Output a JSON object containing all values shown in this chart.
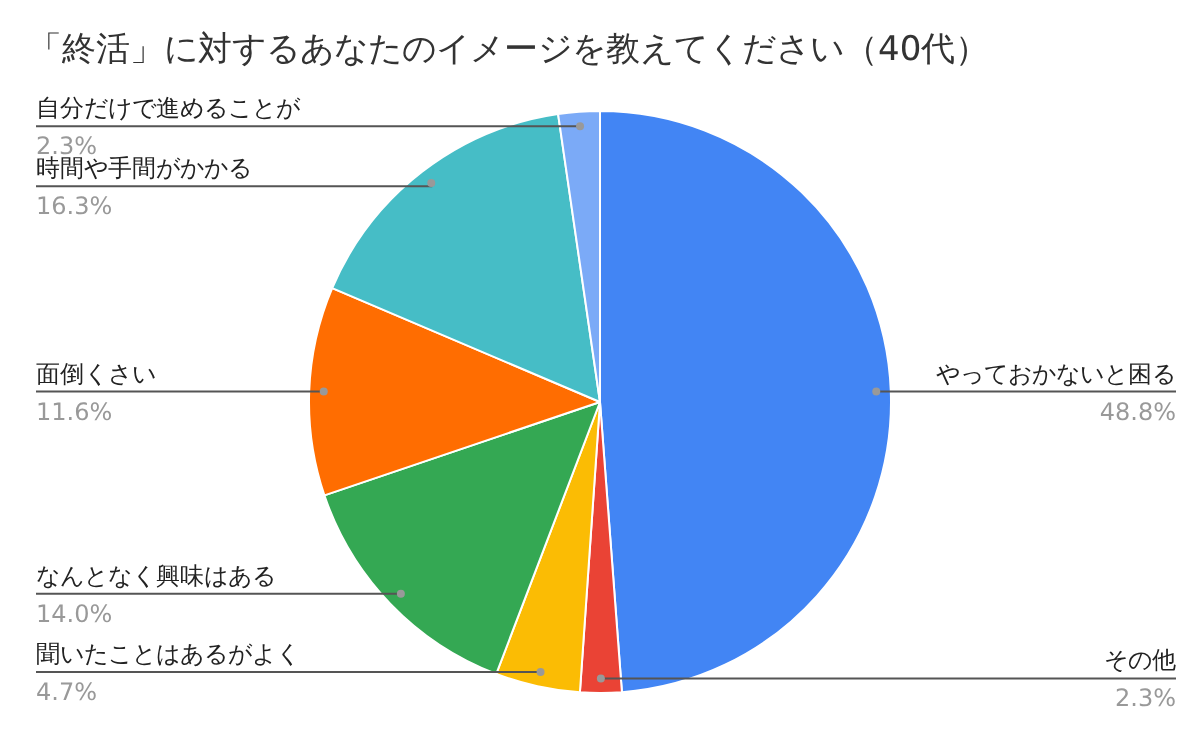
{
  "chart_data": {
    "type": "pie",
    "title": "「終活」に対するあなたのイメージを教えてください（40代）",
    "categories": [
      "やっておかないと困る",
      "その他",
      "聞いたことはあるがよく",
      "なんとなく興味はある",
      "面倒くさい",
      "時間や手間がかかる",
      "自分だけで進めることが"
    ],
    "values": [
      48.8,
      2.3,
      4.7,
      14.0,
      11.6,
      16.3,
      2.3
    ],
    "value_labels": [
      "48.8%",
      "2.3%",
      "4.7%",
      "14.0%",
      "11.6%",
      "16.3%",
      "2.3%"
    ],
    "colors": [
      "#4285f4",
      "#ea4335",
      "#fbbc04",
      "#34a853",
      "#ff6d01",
      "#46bdc6",
      "#7baaf7"
    ],
    "legend": false
  }
}
